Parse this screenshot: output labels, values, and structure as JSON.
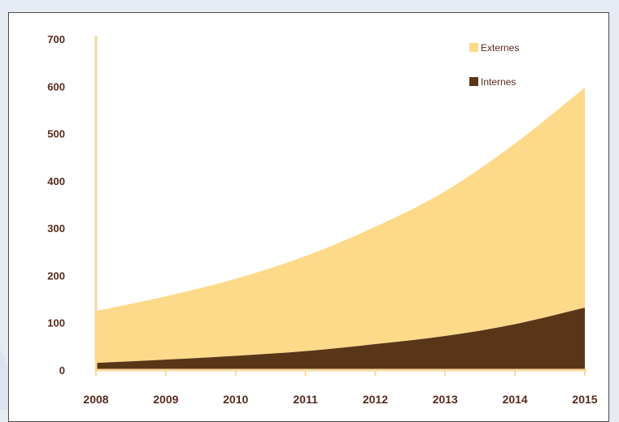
{
  "colors": {
    "externes": "#fdd98a",
    "internes": "#5a3618",
    "axis": "#fad89a",
    "tick_text": "#5a2a1e",
    "page_background": "#e6eaf3"
  },
  "chart_data": {
    "type": "area",
    "stacked": true,
    "title": "",
    "xlabel": "",
    "ylabel": "",
    "x": [
      "2008",
      "2009",
      "2010",
      "2011",
      "2012",
      "2013",
      "2014",
      "2015"
    ],
    "ylim": [
      0,
      700
    ],
    "yticks": [
      "0",
      "100",
      "200",
      "300",
      "400",
      "500",
      "600",
      "700"
    ],
    "grid": false,
    "legend_position": "top-right",
    "series": [
      {
        "name": "Internes",
        "color": "#5a3618",
        "values": [
          15,
          22,
          30,
          40,
          55,
          72,
          97,
          132
        ]
      },
      {
        "name": "Externes",
        "color": "#fdd98a",
        "values": [
          110,
          134,
          163,
          201,
          248,
          306,
          382,
          465
        ]
      }
    ],
    "legend": [
      {
        "label": "Externes",
        "color": "#fdd98a"
      },
      {
        "label": "Internes",
        "color": "#5a3618"
      }
    ]
  }
}
